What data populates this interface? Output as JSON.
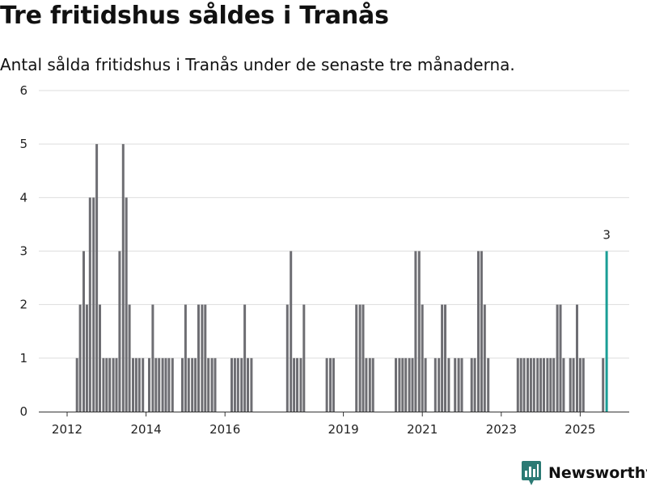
{
  "chart_data": {
    "type": "bar",
    "title": "Tre fritidshus såldes i Tranås",
    "subtitle": "Antal sålda fritidshus i Tranås under de senaste tre månaderna.",
    "xlabel": "",
    "ylabel": "",
    "ylim": [
      0,
      6
    ],
    "yticks": [
      0,
      1,
      2,
      3,
      4,
      5,
      6
    ],
    "xlim": [
      2011.5,
      2026.1
    ],
    "xtick_labels": [
      "2012",
      "2014",
      "2016",
      "2019",
      "2021",
      "2023",
      "2025"
    ],
    "grid": true,
    "x": [
      2012.25,
      2012.33,
      2012.42,
      2012.5,
      2012.58,
      2012.67,
      2012.75,
      2012.83,
      2012.92,
      2013.0,
      2013.08,
      2013.17,
      2013.25,
      2013.33,
      2013.42,
      2013.5,
      2013.58,
      2013.67,
      2013.75,
      2013.83,
      2013.92,
      2014.08,
      2014.17,
      2014.25,
      2014.33,
      2014.42,
      2014.5,
      2014.58,
      2014.67,
      2014.92,
      2015.0,
      2015.08,
      2015.17,
      2015.25,
      2015.33,
      2015.42,
      2015.5,
      2015.58,
      2015.67,
      2015.75,
      2016.17,
      2016.25,
      2016.33,
      2016.42,
      2016.5,
      2016.58,
      2016.67,
      2017.58,
      2017.67,
      2017.75,
      2017.83,
      2017.92,
      2018.0,
      2018.58,
      2018.67,
      2018.75,
      2019.33,
      2019.42,
      2019.5,
      2019.58,
      2019.67,
      2019.75,
      2020.33,
      2020.42,
      2020.5,
      2020.58,
      2020.67,
      2020.75,
      2020.83,
      2020.92,
      2021.0,
      2021.08,
      2021.33,
      2021.42,
      2021.5,
      2021.58,
      2021.67,
      2021.83,
      2021.92,
      2022.0,
      2022.25,
      2022.33,
      2022.42,
      2022.5,
      2022.58,
      2022.67,
      2023.42,
      2023.5,
      2023.58,
      2023.67,
      2023.75,
      2023.83,
      2023.92,
      2024.0,
      2024.08,
      2024.17,
      2024.25,
      2024.33,
      2024.42,
      2024.5,
      2024.58,
      2024.75,
      2024.83,
      2024.92,
      2025.0,
      2025.08,
      2025.58,
      2025.67
    ],
    "values": [
      1,
      2,
      3,
      2,
      4,
      4,
      5,
      2,
      1,
      1,
      1,
      1,
      1,
      3,
      5,
      4,
      2,
      1,
      1,
      1,
      1,
      1,
      2,
      1,
      1,
      1,
      1,
      1,
      1,
      1,
      2,
      1,
      1,
      1,
      2,
      2,
      2,
      1,
      1,
      1,
      1,
      1,
      1,
      1,
      2,
      1,
      1,
      2,
      3,
      1,
      1,
      1,
      2,
      1,
      1,
      1,
      2,
      2,
      2,
      1,
      1,
      1,
      1,
      1,
      1,
      1,
      1,
      1,
      3,
      3,
      2,
      1,
      1,
      1,
      2,
      2,
      1,
      1,
      1,
      1,
      1,
      1,
      3,
      3,
      2,
      1,
      1,
      1,
      1,
      1,
      1,
      1,
      1,
      1,
      1,
      1,
      1,
      1,
      2,
      2,
      1,
      1,
      1,
      2,
      1,
      1,
      1,
      3
    ],
    "highlight": {
      "x": 2025.67,
      "value": 3,
      "label": "3"
    },
    "colors": {
      "bar": "#6e6e73",
      "highlight": "#1a9e96",
      "grid": "#dddddd",
      "axis": "#333333"
    }
  },
  "branding": {
    "name": "Newsworthy",
    "logo_icon": "bar-chart-badge-icon",
    "color": "#2b7a74"
  }
}
